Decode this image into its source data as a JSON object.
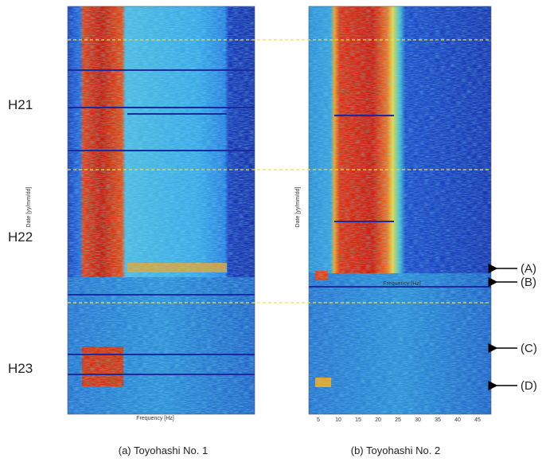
{
  "era_labels": [
    "H21",
    "H22",
    "H23"
  ],
  "panels": [
    {
      "caption": "(a) Toyohashi No. 1",
      "x_axis_label": "Frequency [Hz]",
      "y_axis_label": "Date [yy/mm/dd]"
    },
    {
      "caption": "(b) Toyohashi No. 2",
      "x_axis_label": "Frequency [Hz]",
      "y_axis_label": "Date [yy/mm/dd]",
      "x_ticks": [
        "5",
        "10",
        "15",
        "20",
        "25",
        "30",
        "35",
        "40",
        "45"
      ]
    }
  ],
  "annotations": [
    "(A)",
    "(B)",
    "(C)",
    "(D)"
  ]
}
